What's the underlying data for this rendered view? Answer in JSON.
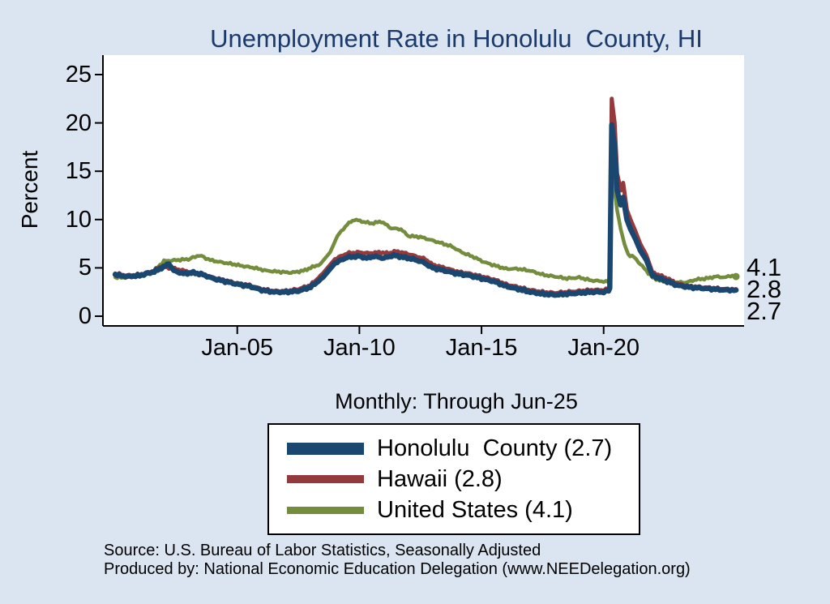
{
  "title": "Unemployment Rate in Honolulu  County, HI",
  "subtitle": "Monthly: Through Jun-25",
  "source_line1": "Source: U.S. Bureau of Labor Statistics, Seasonally Adjusted",
  "source_line2": "Produced by: National Economic Education Delegation (www.NEEDelegation.org)",
  "chart_data": {
    "type": "line",
    "title": "Unemployment Rate in Honolulu  County, HI",
    "xlabel": "",
    "ylabel": "Percent",
    "ylim": [
      0,
      25
    ],
    "yticks": [
      0,
      5,
      10,
      15,
      20,
      25
    ],
    "xlim": [
      1999.5,
      2025.75
    ],
    "xticks": [
      {
        "x": 2005,
        "label": "Jan-05"
      },
      {
        "x": 2010,
        "label": "Jan-10"
      },
      {
        "x": 2015,
        "label": "Jan-15"
      },
      {
        "x": 2020,
        "label": "Jan-20"
      }
    ],
    "x_unit": "decimal_year",
    "legend_position": "bottom",
    "grid": false,
    "series": [
      {
        "name": "Honolulu  County (2.7)",
        "end_label": "2.7",
        "color": "#1a476f",
        "width": 6.5,
        "swatch_h": 15,
        "points": [
          [
            2000.0,
            4.3
          ],
          [
            2000.5,
            4.1
          ],
          [
            2001.0,
            4.2
          ],
          [
            2001.6,
            4.6
          ],
          [
            2001.9,
            5.0
          ],
          [
            2002.2,
            5.4
          ],
          [
            2002.4,
            4.7
          ],
          [
            2002.8,
            4.4
          ],
          [
            2003.2,
            4.5
          ],
          [
            2003.6,
            4.3
          ],
          [
            2004.0,
            3.9
          ],
          [
            2004.5,
            3.6
          ],
          [
            2005.0,
            3.3
          ],
          [
            2005.5,
            3.1
          ],
          [
            2006.0,
            2.7
          ],
          [
            2006.5,
            2.5
          ],
          [
            2007.0,
            2.5
          ],
          [
            2007.5,
            2.6
          ],
          [
            2008.0,
            3.0
          ],
          [
            2008.5,
            4.0
          ],
          [
            2009.0,
            5.5
          ],
          [
            2009.5,
            6.1
          ],
          [
            2010.0,
            6.2
          ],
          [
            2010.3,
            6.0
          ],
          [
            2010.6,
            6.2
          ],
          [
            2011.0,
            6.0
          ],
          [
            2011.4,
            6.3
          ],
          [
            2011.8,
            6.1
          ],
          [
            2012.2,
            5.9
          ],
          [
            2012.6,
            5.6
          ],
          [
            2013.0,
            5.0
          ],
          [
            2013.5,
            4.7
          ],
          [
            2014.0,
            4.4
          ],
          [
            2014.5,
            4.2
          ],
          [
            2015.0,
            3.9
          ],
          [
            2015.5,
            3.6
          ],
          [
            2016.0,
            3.1
          ],
          [
            2016.5,
            2.8
          ],
          [
            2017.0,
            2.5
          ],
          [
            2017.5,
            2.3
          ],
          [
            2018.0,
            2.2
          ],
          [
            2018.5,
            2.3
          ],
          [
            2019.0,
            2.4
          ],
          [
            2019.5,
            2.5
          ],
          [
            2020.0,
            2.5
          ],
          [
            2020.2,
            2.6
          ],
          [
            2020.25,
            2.9
          ],
          [
            2020.33,
            19.8
          ],
          [
            2020.45,
            17.5
          ],
          [
            2020.55,
            13.0
          ],
          [
            2020.7,
            11.5
          ],
          [
            2020.8,
            12.3
          ],
          [
            2020.95,
            10.0
          ],
          [
            2021.1,
            9.0
          ],
          [
            2021.3,
            8.0
          ],
          [
            2021.5,
            6.8
          ],
          [
            2021.75,
            5.8
          ],
          [
            2022.0,
            4.2
          ],
          [
            2022.3,
            3.9
          ],
          [
            2022.6,
            3.6
          ],
          [
            2023.0,
            3.2
          ],
          [
            2023.5,
            3.0
          ],
          [
            2024.0,
            2.9
          ],
          [
            2024.5,
            2.8
          ],
          [
            2025.0,
            2.7
          ],
          [
            2025.42,
            2.7
          ]
        ]
      },
      {
        "name": "Hawaii (2.8)",
        "end_label": "2.8",
        "color": "#94393c",
        "width": 5,
        "swatch_h": 10,
        "points": [
          [
            2000.0,
            4.4
          ],
          [
            2000.5,
            4.2
          ],
          [
            2001.0,
            4.3
          ],
          [
            2001.6,
            4.7
          ],
          [
            2001.9,
            5.2
          ],
          [
            2002.2,
            5.0
          ],
          [
            2002.6,
            4.8
          ],
          [
            2003.0,
            4.6
          ],
          [
            2003.5,
            4.4
          ],
          [
            2004.0,
            4.0
          ],
          [
            2004.5,
            3.7
          ],
          [
            2005.0,
            3.4
          ],
          [
            2005.5,
            3.2
          ],
          [
            2006.0,
            2.8
          ],
          [
            2006.5,
            2.6
          ],
          [
            2007.0,
            2.6
          ],
          [
            2007.5,
            2.8
          ],
          [
            2008.0,
            3.2
          ],
          [
            2008.5,
            4.4
          ],
          [
            2009.0,
            5.9
          ],
          [
            2009.5,
            6.5
          ],
          [
            2010.0,
            6.6
          ],
          [
            2010.4,
            6.5
          ],
          [
            2010.8,
            6.6
          ],
          [
            2011.2,
            6.5
          ],
          [
            2011.5,
            6.7
          ],
          [
            2011.9,
            6.5
          ],
          [
            2012.3,
            6.2
          ],
          [
            2012.7,
            5.9
          ],
          [
            2013.0,
            5.3
          ],
          [
            2013.5,
            5.0
          ],
          [
            2014.0,
            4.6
          ],
          [
            2014.5,
            4.4
          ],
          [
            2015.0,
            4.1
          ],
          [
            2015.5,
            3.8
          ],
          [
            2016.0,
            3.3
          ],
          [
            2016.5,
            3.0
          ],
          [
            2017.0,
            2.7
          ],
          [
            2017.5,
            2.5
          ],
          [
            2018.0,
            2.4
          ],
          [
            2018.5,
            2.5
          ],
          [
            2019.0,
            2.6
          ],
          [
            2019.5,
            2.7
          ],
          [
            2020.0,
            2.7
          ],
          [
            2020.2,
            2.8
          ],
          [
            2020.25,
            3.1
          ],
          [
            2020.33,
            22.5
          ],
          [
            2020.45,
            20.0
          ],
          [
            2020.55,
            14.8
          ],
          [
            2020.7,
            13.0
          ],
          [
            2020.8,
            13.8
          ],
          [
            2020.95,
            11.0
          ],
          [
            2021.1,
            10.0
          ],
          [
            2021.3,
            8.8
          ],
          [
            2021.5,
            7.5
          ],
          [
            2021.75,
            6.3
          ],
          [
            2022.0,
            4.5
          ],
          [
            2022.3,
            4.2
          ],
          [
            2022.6,
            3.9
          ],
          [
            2023.0,
            3.4
          ],
          [
            2023.5,
            3.1
          ],
          [
            2024.0,
            3.0
          ],
          [
            2024.5,
            2.9
          ],
          [
            2025.0,
            2.8
          ],
          [
            2025.42,
            2.8
          ]
        ]
      },
      {
        "name": "United States (4.1)",
        "end_label": "4.1",
        "color": "#738d3c",
        "width": 4.5,
        "swatch_h": 9,
        "end_marker": true,
        "points": [
          [
            2000.0,
            4.0
          ],
          [
            2000.5,
            4.0
          ],
          [
            2001.0,
            4.2
          ],
          [
            2001.5,
            4.5
          ],
          [
            2002.0,
            5.7
          ],
          [
            2002.5,
            5.8
          ],
          [
            2003.0,
            5.9
          ],
          [
            2003.45,
            6.3
          ],
          [
            2003.9,
            5.8
          ],
          [
            2004.3,
            5.6
          ],
          [
            2004.8,
            5.4
          ],
          [
            2005.2,
            5.2
          ],
          [
            2005.7,
            5.0
          ],
          [
            2006.2,
            4.7
          ],
          [
            2006.7,
            4.6
          ],
          [
            2007.2,
            4.5
          ],
          [
            2007.7,
            4.7
          ],
          [
            2008.0,
            5.0
          ],
          [
            2008.4,
            5.4
          ],
          [
            2008.8,
            6.6
          ],
          [
            2009.1,
            8.3
          ],
          [
            2009.5,
            9.5
          ],
          [
            2009.8,
            10.0
          ],
          [
            2010.1,
            9.8
          ],
          [
            2010.5,
            9.6
          ],
          [
            2010.9,
            9.8
          ],
          [
            2011.3,
            9.1
          ],
          [
            2011.7,
            9.0
          ],
          [
            2012.0,
            8.3
          ],
          [
            2012.5,
            8.2
          ],
          [
            2012.9,
            7.9
          ],
          [
            2013.3,
            7.6
          ],
          [
            2013.8,
            7.2
          ],
          [
            2014.2,
            6.6
          ],
          [
            2014.7,
            6.1
          ],
          [
            2015.1,
            5.6
          ],
          [
            2015.6,
            5.2
          ],
          [
            2016.0,
            4.9
          ],
          [
            2016.5,
            4.9
          ],
          [
            2017.0,
            4.7
          ],
          [
            2017.5,
            4.3
          ],
          [
            2018.0,
            4.1
          ],
          [
            2018.5,
            3.9
          ],
          [
            2019.0,
            4.0
          ],
          [
            2019.5,
            3.7
          ],
          [
            2020.0,
            3.6
          ],
          [
            2020.2,
            3.5
          ],
          [
            2020.25,
            4.4
          ],
          [
            2020.33,
            14.8
          ],
          [
            2020.45,
            13.0
          ],
          [
            2020.55,
            11.0
          ],
          [
            2020.7,
            9.0
          ],
          [
            2020.85,
            7.5
          ],
          [
            2021.0,
            6.4
          ],
          [
            2021.25,
            6.1
          ],
          [
            2021.5,
            5.4
          ],
          [
            2021.75,
            4.7
          ],
          [
            2022.0,
            4.0
          ],
          [
            2022.3,
            3.7
          ],
          [
            2022.6,
            3.5
          ],
          [
            2023.0,
            3.5
          ],
          [
            2023.4,
            3.5
          ],
          [
            2023.8,
            3.8
          ],
          [
            2024.2,
            3.9
          ],
          [
            2024.6,
            4.1
          ],
          [
            2025.0,
            4.0
          ],
          [
            2025.2,
            4.2
          ],
          [
            2025.42,
            4.1
          ]
        ]
      }
    ]
  }
}
